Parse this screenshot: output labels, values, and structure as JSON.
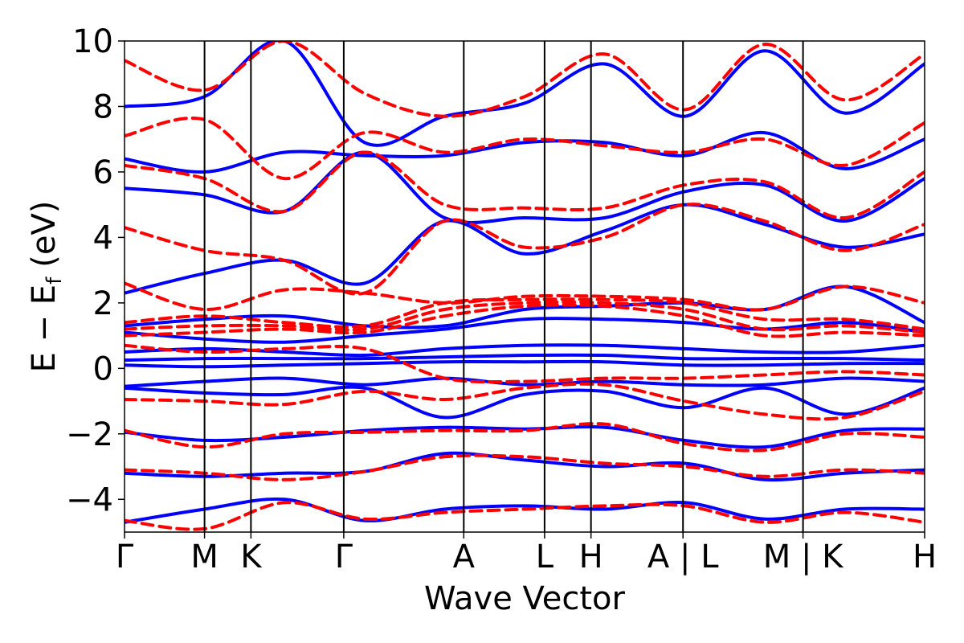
{
  "chart_data": {
    "type": "line",
    "title": "",
    "xlabel": "Wave Vector",
    "ylabel_main": "E − E",
    "ylabel_sub": "f",
    "ylabel_unit": "(eV)",
    "ylim": [
      -5,
      10
    ],
    "xlim": [
      0,
      10
    ],
    "y_ticks": [
      -4,
      -2,
      0,
      2,
      4,
      6,
      8,
      10
    ],
    "y_tick_labels": [
      "−4",
      "−2",
      "0",
      "2",
      "4",
      "6",
      "8",
      "10"
    ],
    "grid": false,
    "legend": "none",
    "high_symmetry_points": [
      {
        "label": "Γ",
        "x": 0.0
      },
      {
        "label": "M",
        "x": 1.0
      },
      {
        "label": "K",
        "x": 1.58
      },
      {
        "label": "Γ",
        "x": 2.74
      },
      {
        "label": "A",
        "x": 4.24
      },
      {
        "label": "L",
        "x": 5.25
      },
      {
        "label": "H",
        "x": 5.83
      },
      {
        "label": "A | L",
        "x": 6.98
      },
      {
        "label": "M | K",
        "x": 8.48
      },
      {
        "label": "H",
        "x": 10.0
      }
    ],
    "series": [
      {
        "style": "solid",
        "color": "#0000ff",
        "bands": [
          [
            -4.7,
            -4.3,
            -4.0,
            -4.65,
            -4.3,
            -4.2,
            -4.3,
            -4.1,
            -4.6,
            -4.3,
            -4.3
          ],
          [
            -3.2,
            -3.3,
            -3.2,
            -3.15,
            -2.6,
            -2.8,
            -3.0,
            -2.9,
            -3.4,
            -3.2,
            -3.1
          ],
          [
            -1.95,
            -2.2,
            -2.1,
            -1.9,
            -1.8,
            -1.85,
            -1.8,
            -2.2,
            -2.4,
            -1.9,
            -1.85
          ],
          [
            -0.6,
            -0.75,
            -0.8,
            -0.6,
            -1.5,
            -0.8,
            -0.7,
            -1.2,
            -0.6,
            -1.4,
            -0.6
          ],
          [
            -0.55,
            -0.4,
            -0.3,
            -0.5,
            -0.3,
            -0.5,
            -0.4,
            -0.5,
            -0.5,
            -0.3,
            -0.4
          ],
          [
            0.1,
            0.05,
            0.1,
            0.15,
            0.2,
            0.2,
            0.2,
            0.1,
            0.1,
            0.15,
            0.15
          ],
          [
            0.25,
            0.3,
            0.3,
            0.3,
            0.35,
            0.4,
            0.4,
            0.3,
            0.3,
            0.3,
            0.25
          ],
          [
            0.5,
            0.6,
            0.5,
            0.4,
            0.6,
            0.7,
            0.7,
            0.6,
            0.5,
            0.5,
            0.7
          ],
          [
            1.1,
            0.9,
            0.8,
            1.0,
            1.2,
            1.5,
            1.5,
            1.4,
            1.2,
            1.4,
            1.1
          ],
          [
            1.3,
            1.5,
            1.6,
            1.3,
            1.3,
            1.8,
            1.9,
            2.0,
            1.8,
            2.5,
            1.4
          ],
          [
            2.3,
            2.9,
            3.3,
            2.6,
            4.5,
            3.5,
            4.2,
            5.0,
            4.4,
            3.7,
            4.1
          ],
          [
            5.5,
            5.3,
            4.8,
            6.6,
            4.6,
            4.6,
            4.6,
            5.4,
            5.6,
            4.5,
            5.8
          ],
          [
            6.4,
            6.0,
            6.6,
            6.5,
            6.5,
            6.9,
            6.9,
            6.5,
            7.2,
            6.1,
            7.0
          ],
          [
            8.0,
            8.3,
            10.0,
            6.9,
            7.7,
            8.1,
            9.3,
            7.7,
            9.7,
            7.8,
            9.3
          ]
        ]
      },
      {
        "style": "dashed",
        "color": "#ff0000",
        "bands": [
          [
            -4.65,
            -4.9,
            -4.1,
            -4.6,
            -4.4,
            -4.3,
            -4.2,
            -4.2,
            -4.7,
            -4.4,
            -4.7
          ],
          [
            -3.1,
            -3.2,
            -3.4,
            -3.15,
            -2.7,
            -2.7,
            -2.9,
            -3.0,
            -3.3,
            -3.1,
            -3.2
          ],
          [
            -1.9,
            -2.4,
            -2.0,
            -1.95,
            -1.9,
            -1.9,
            -1.7,
            -2.3,
            -2.5,
            -2.0,
            -2.1
          ],
          [
            -0.95,
            -1.0,
            -1.1,
            -0.7,
            -0.95,
            -0.6,
            -0.5,
            -1.0,
            -1.4,
            -1.5,
            -0.7
          ],
          [
            0.7,
            0.5,
            0.6,
            0.6,
            -0.3,
            -0.4,
            -0.3,
            -0.3,
            -0.2,
            -0.1,
            -0.2
          ],
          [
            1.0,
            1.1,
            1.2,
            1.1,
            1.6,
            1.9,
            1.9,
            1.6,
            1.0,
            1.1,
            1.0
          ],
          [
            1.2,
            1.3,
            1.3,
            1.2,
            1.8,
            2.0,
            2.0,
            1.8,
            1.2,
            1.3,
            1.1
          ],
          [
            1.4,
            1.6,
            1.4,
            1.3,
            2.0,
            2.1,
            2.1,
            2.0,
            1.5,
            1.5,
            1.2
          ],
          [
            2.6,
            1.8,
            2.4,
            2.3,
            2.0,
            2.2,
            2.2,
            2.1,
            1.8,
            2.5,
            2.0
          ],
          [
            4.3,
            3.6,
            3.3,
            2.3,
            4.5,
            3.7,
            4.0,
            5.0,
            4.5,
            3.6,
            4.4
          ],
          [
            6.2,
            5.8,
            4.8,
            6.6,
            5.0,
            4.9,
            4.9,
            5.6,
            5.7,
            4.6,
            6.0
          ],
          [
            7.1,
            7.6,
            5.8,
            7.2,
            6.6,
            7.0,
            6.8,
            6.6,
            7.0,
            6.2,
            7.5
          ],
          [
            9.4,
            8.5,
            10.0,
            8.4,
            7.7,
            8.3,
            9.6,
            7.9,
            9.9,
            8.2,
            9.6
          ]
        ]
      }
    ]
  }
}
